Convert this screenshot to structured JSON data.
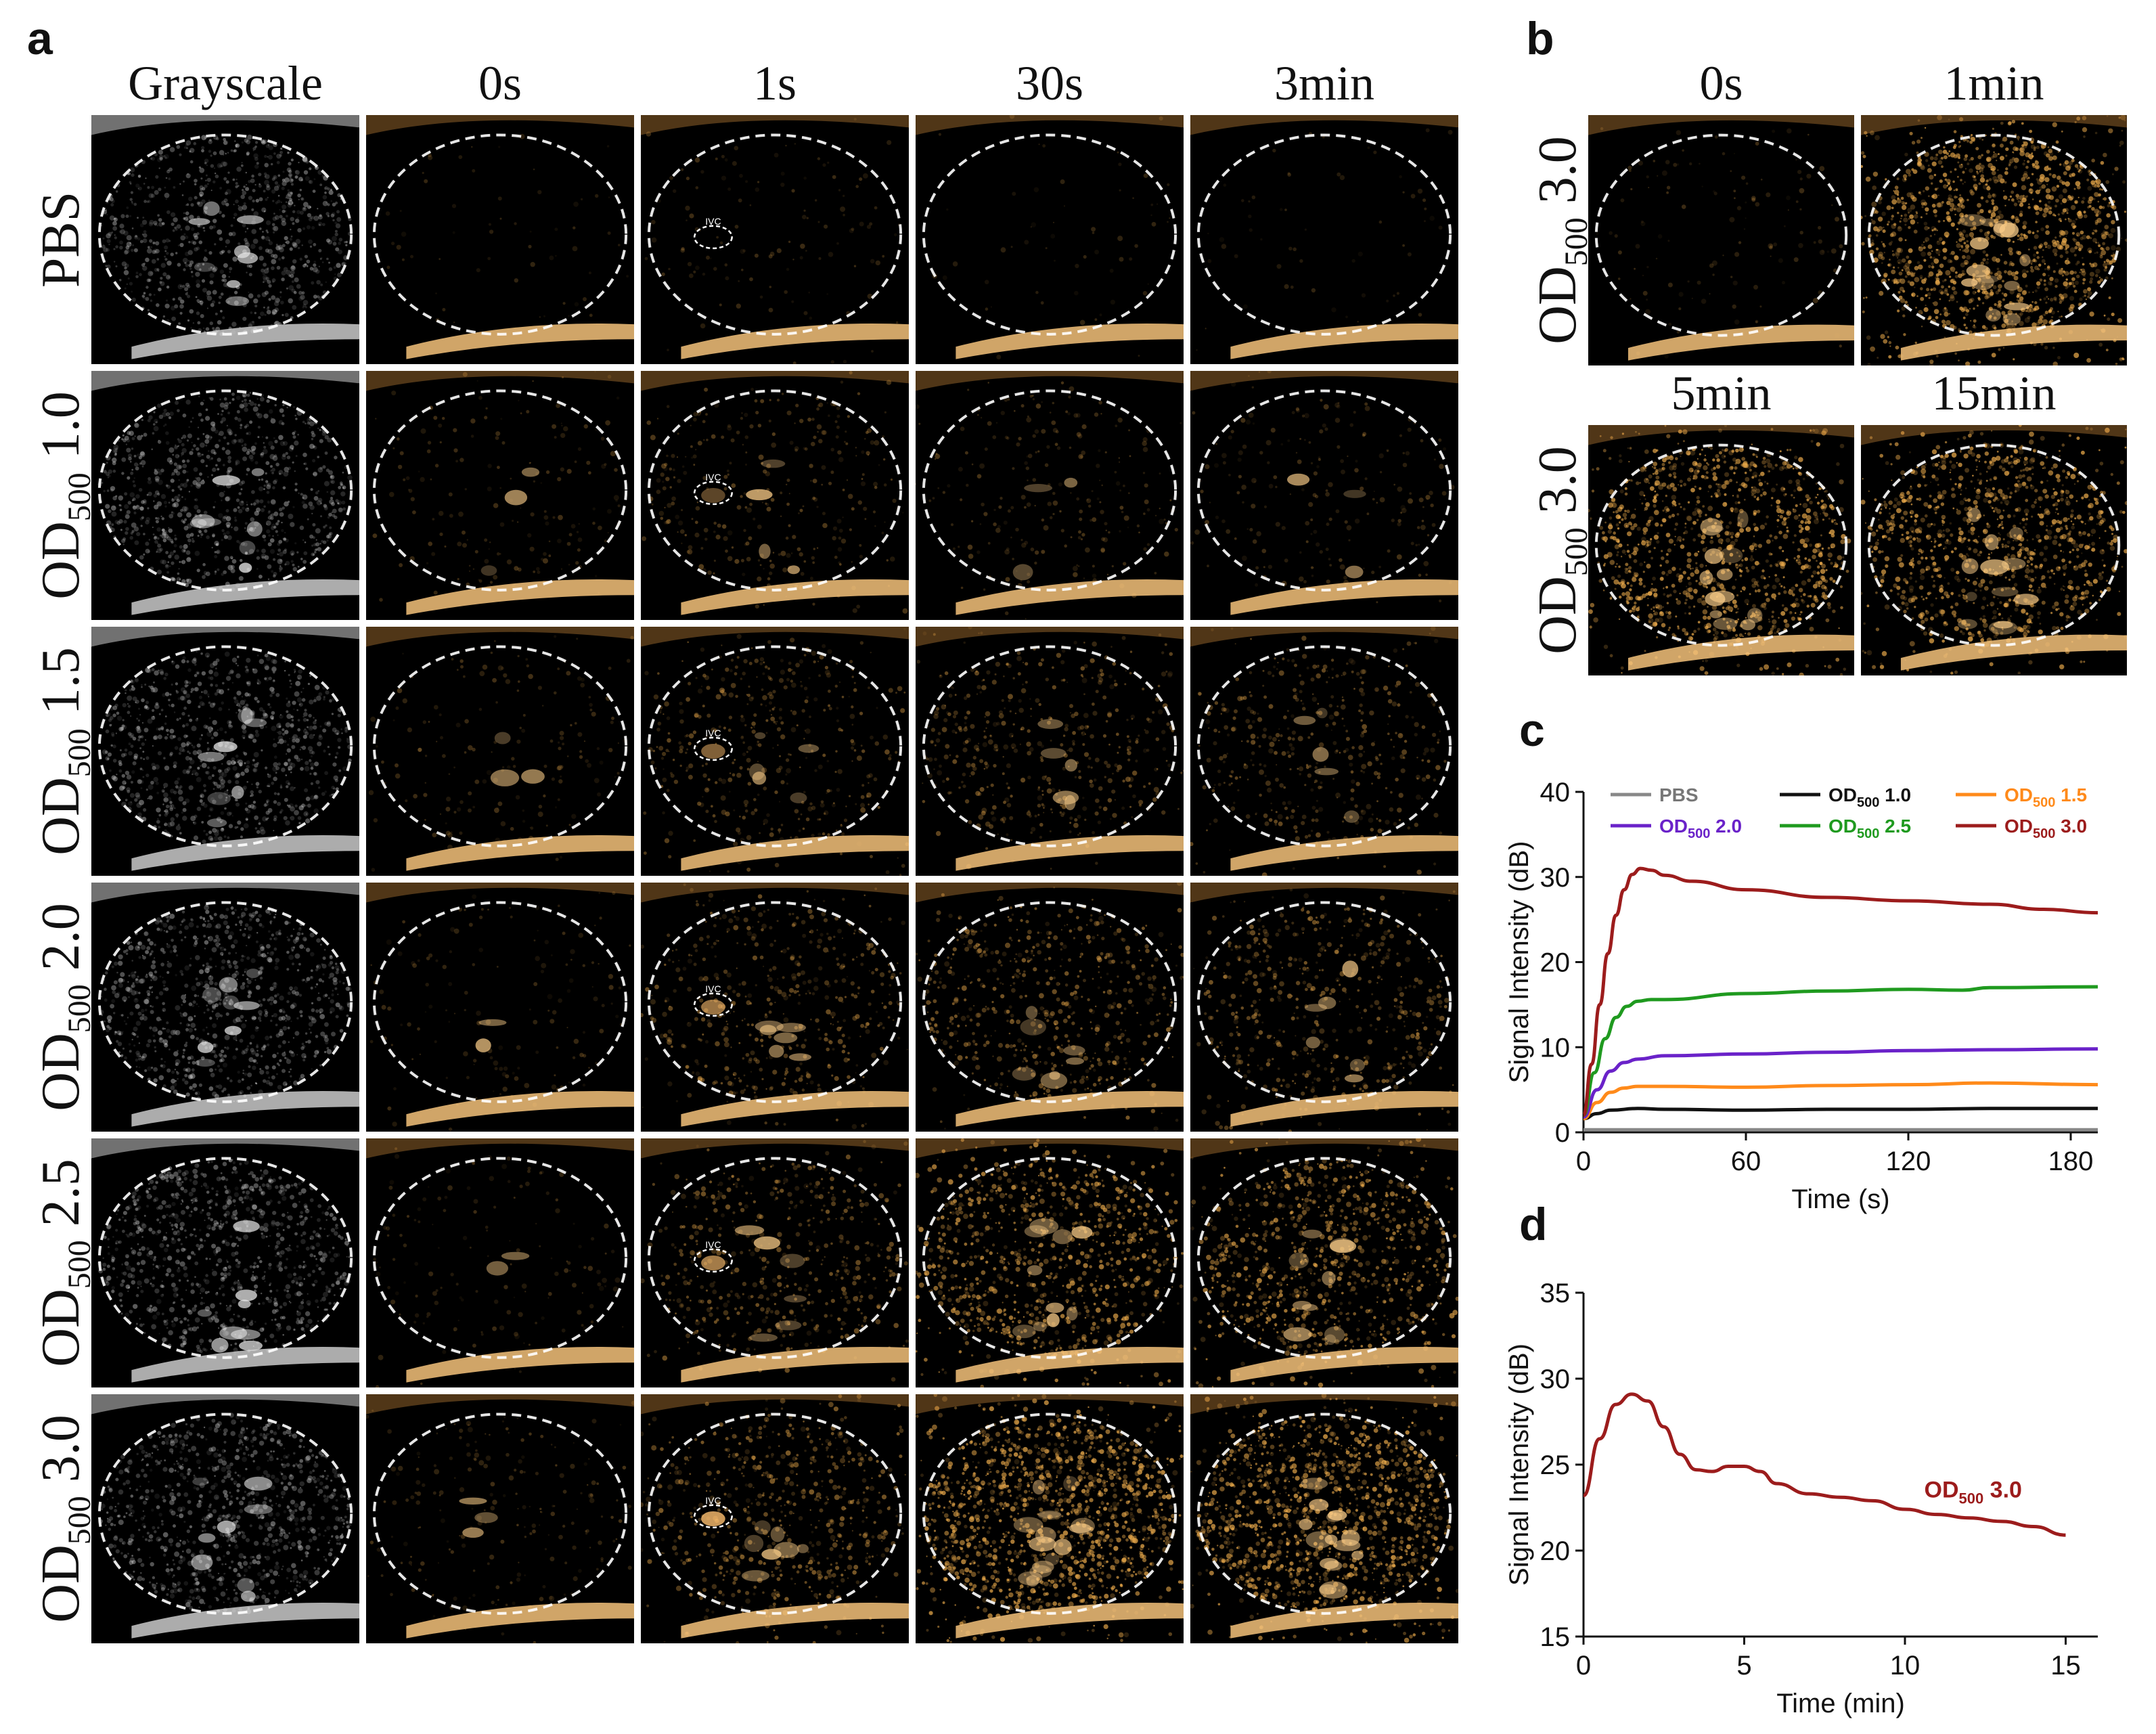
{
  "panel_labels": {
    "a": "a",
    "b": "b",
    "c": "c",
    "d": "d"
  },
  "panel_a": {
    "columns": [
      "Grayscale",
      "0s",
      "1s",
      "30s",
      "3min"
    ],
    "rows": [
      {
        "name": "PBS",
        "prefix": "",
        "subscript": "",
        "value": "",
        "enhancement": [
          0,
          0,
          0.05,
          0,
          0
        ]
      },
      {
        "name": "OD500 1.0",
        "prefix": "OD",
        "subscript": "500",
        "value": " 1.0",
        "enhancement": [
          0,
          0.08,
          0.18,
          0.12,
          0.1
        ]
      },
      {
        "name": "OD500 1.5",
        "prefix": "OD",
        "subscript": "500",
        "value": " 1.5",
        "enhancement": [
          0,
          0.08,
          0.25,
          0.28,
          0.26
        ]
      },
      {
        "name": "OD500 2.0",
        "prefix": "OD",
        "subscript": "500",
        "value": " 2.0",
        "enhancement": [
          0,
          0.06,
          0.3,
          0.38,
          0.34
        ]
      },
      {
        "name": "OD500 2.5",
        "prefix": "OD",
        "subscript": "500",
        "value": " 2.5",
        "enhancement": [
          0,
          0.06,
          0.32,
          0.62,
          0.6
        ]
      },
      {
        "name": "OD500 3.0",
        "prefix": "OD",
        "subscript": "500",
        "value": " 3.0",
        "enhancement": [
          0,
          0.1,
          0.4,
          0.95,
          0.88
        ]
      }
    ],
    "ivc_label": "IVC"
  },
  "panel_b": {
    "row_label": {
      "prefix": "OD",
      "subscript": "500",
      "value": " 3.0"
    },
    "frames": [
      {
        "label": "0s",
        "enhancement": 0.05
      },
      {
        "label": "1min",
        "enhancement": 0.95
      },
      {
        "label": "5min",
        "enhancement": 0.8
      },
      {
        "label": "15min",
        "enhancement": 0.75
      }
    ]
  },
  "colors": {
    "PBS": "#888888",
    "OD500 1.0": "#111111",
    "OD500 1.5": "#ff8a1a",
    "OD500 2.0": "#6a22c9",
    "OD500 2.5": "#1f9a1f",
    "OD500 3.0": "#9c1c1c",
    "contrast": "#e8a84a"
  },
  "chart_data": [
    {
      "panel": "c",
      "type": "line",
      "title": "",
      "xlabel": "Time (s)",
      "ylabel": "Signal Intensity (dB)",
      "xlim": [
        0,
        190
      ],
      "ylim": [
        0,
        40
      ],
      "xticks": [
        0,
        60,
        120,
        180
      ],
      "yticks": [
        0,
        10,
        20,
        30,
        40
      ],
      "legend_position": "top",
      "series": [
        {
          "name": "PBS",
          "prefix": "PBS",
          "subscript": "",
          "value": "",
          "x": [
            0,
            60,
            120,
            190
          ],
          "y": [
            0.3,
            0.3,
            0.3,
            0.3
          ]
        },
        {
          "name": "OD500 1.0",
          "prefix": "OD",
          "subscript": "500",
          "value": " 1.0",
          "x": [
            0,
            5,
            10,
            20,
            30,
            60,
            90,
            120,
            150,
            190
          ],
          "y": [
            1.6,
            2.2,
            2.6,
            2.8,
            2.7,
            2.6,
            2.7,
            2.7,
            2.8,
            2.8
          ]
        },
        {
          "name": "OD500 1.5",
          "prefix": "OD",
          "subscript": "500",
          "value": " 1.5",
          "x": [
            0,
            5,
            10,
            15,
            20,
            30,
            60,
            90,
            120,
            150,
            190
          ],
          "y": [
            1.6,
            3.5,
            4.7,
            5.2,
            5.4,
            5.4,
            5.3,
            5.5,
            5.6,
            5.8,
            5.6
          ]
        },
        {
          "name": "OD500 2.0",
          "prefix": "OD",
          "subscript": "500",
          "value": " 2.0",
          "x": [
            0,
            5,
            10,
            15,
            20,
            30,
            60,
            90,
            120,
            150,
            190
          ],
          "y": [
            1.8,
            5,
            7.2,
            8.2,
            8.6,
            9,
            9.2,
            9.4,
            9.6,
            9.7,
            9.8
          ]
        },
        {
          "name": "OD500 2.5",
          "prefix": "OD",
          "subscript": "500",
          "value": " 2.5",
          "x": [
            0,
            4,
            8,
            12,
            16,
            20,
            25,
            30,
            60,
            90,
            120,
            140,
            150,
            190
          ],
          "y": [
            2,
            7,
            11,
            13.5,
            14.8,
            15.4,
            15.6,
            15.6,
            16.3,
            16.6,
            16.8,
            16.7,
            17,
            17.1
          ]
        },
        {
          "name": "OD500 3.0",
          "prefix": "OD",
          "subscript": "500",
          "value": " 3.0",
          "x": [
            0,
            3,
            6,
            9,
            12,
            15,
            18,
            21,
            25,
            30,
            40,
            60,
            90,
            120,
            150,
            170,
            190
          ],
          "y": [
            2,
            8,
            15,
            21,
            25.5,
            28.5,
            30.3,
            31,
            30.8,
            30.2,
            29.5,
            28.5,
            27.6,
            27.2,
            26.8,
            26.2,
            25.8
          ]
        }
      ]
    },
    {
      "panel": "d",
      "type": "line",
      "title": "",
      "xlabel": "Time (min)",
      "ylabel": "Signal Intensity (dB)",
      "xlim": [
        0,
        16
      ],
      "ylim": [
        15,
        35
      ],
      "xticks": [
        0,
        5,
        10,
        15
      ],
      "yticks": [
        15,
        20,
        25,
        30,
        35
      ],
      "annotation": {
        "prefix": "OD",
        "subscript": "500",
        "value": " 3.0"
      },
      "series": [
        {
          "name": "OD500 3.0",
          "x": [
            0,
            0.5,
            1,
            1.5,
            2,
            2.5,
            3,
            3.5,
            4,
            4.5,
            5,
            5.5,
            6,
            7,
            8,
            9,
            10,
            11,
            12,
            13,
            14,
            15
          ],
          "y": [
            23.2,
            26.5,
            28.5,
            29.1,
            28.7,
            27.2,
            25.6,
            24.7,
            24.6,
            24.9,
            24.9,
            24.6,
            23.9,
            23.3,
            23.1,
            22.9,
            22.4,
            22.1,
            21.9,
            21.7,
            21.4,
            20.9
          ]
        }
      ]
    }
  ]
}
